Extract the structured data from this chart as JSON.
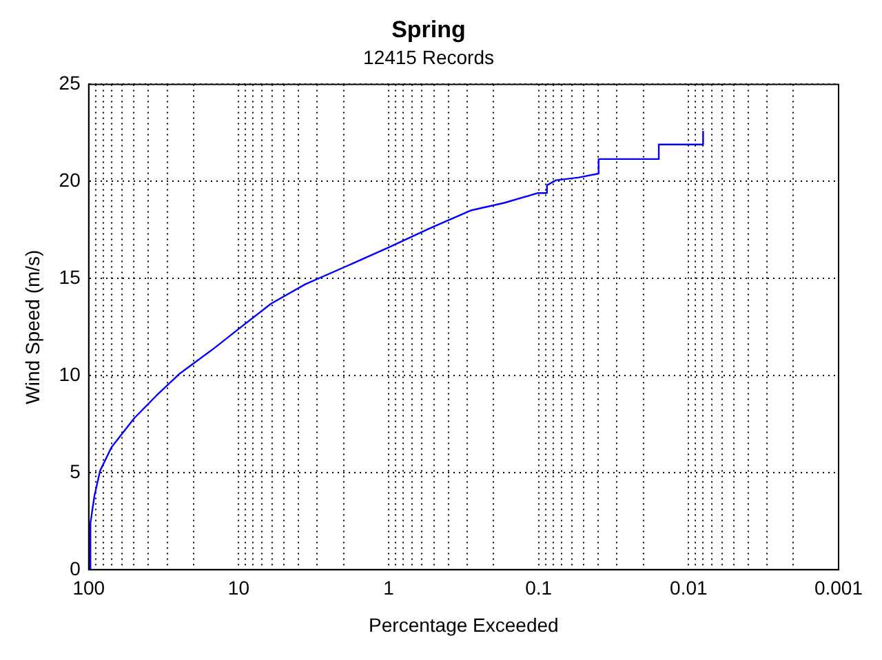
{
  "chart_data": {
    "type": "line",
    "title": "Spring",
    "subtitle": "12415 Records",
    "xlabel": "Percentage Exceeded",
    "ylabel": "Wind Speed (m/s)",
    "log": "x",
    "grid": true,
    "marker": "none",
    "line_style": "solid",
    "xlim": [
      100,
      0.001
    ],
    "ylim": [
      0,
      25
    ],
    "xticks": [
      100,
      {
        "value": 90,
        "label": null
      },
      {
        "value": 80,
        "label": null
      },
      {
        "value": 70,
        "label": null
      },
      {
        "value": 60,
        "label": null
      },
      {
        "value": 50,
        "label": null
      },
      {
        "value": 40,
        "label": null
      },
      {
        "value": 30,
        "label": null
      },
      {
        "value": 20,
        "label": null
      },
      10,
      {
        "value": 9,
        "label": null
      },
      {
        "value": 8,
        "label": null
      },
      {
        "value": 7,
        "label": null
      },
      {
        "value": 6,
        "label": null
      },
      {
        "value": 5,
        "label": null
      },
      {
        "value": 4,
        "label": null
      },
      {
        "value": 3,
        "label": null
      },
      {
        "value": 2,
        "label": null
      },
      1,
      {
        "value": 0.9,
        "label": null
      },
      {
        "value": 0.8,
        "label": null
      },
      {
        "value": 0.7,
        "label": null
      },
      {
        "value": 0.6,
        "label": null
      },
      {
        "value": 0.5,
        "label": null
      },
      {
        "value": 0.4,
        "label": null
      },
      {
        "value": 0.3,
        "label": null
      },
      {
        "value": 0.2,
        "label": null
      },
      0.1,
      {
        "value": 0.09,
        "label": null
      },
      {
        "value": 0.08,
        "label": null
      },
      {
        "value": 0.07,
        "label": null
      },
      {
        "value": 0.06,
        "label": null
      },
      {
        "value": 0.05,
        "label": null
      },
      {
        "value": 0.04,
        "label": null
      },
      {
        "value": 0.03,
        "label": null
      },
      {
        "value": 0.02,
        "label": null
      },
      0.01,
      {
        "value": 0.009,
        "label": null
      },
      {
        "value": 0.008,
        "label": null
      },
      {
        "value": 0.007,
        "label": null
      },
      {
        "value": 0.006,
        "label": null
      },
      {
        "value": 0.005,
        "label": null
      },
      {
        "value": 0.004,
        "label": null
      },
      {
        "value": 0.003,
        "label": null
      },
      {
        "value": 0.002,
        "label": null
      },
      0.001
    ],
    "yticks": [
      0,
      5,
      10,
      15,
      20,
      25
    ],
    "series": [
      {
        "color": "#0000ff",
        "x": [
          98.3,
          97.4,
          91.6,
          83.9,
          70.5,
          49.7,
          35,
          24.7,
          14.6,
          10,
          6.08,
          3.6,
          1.95,
          1,
          0.525,
          0.284,
          0.168,
          0.101,
          0.088,
          0.088,
          0.0766,
          0.054,
          0.0398,
          0.0398,
          0.0158,
          0.0158,
          0.008,
          0.008
        ],
        "values": [
          0,
          2.4,
          3.8,
          5.1,
          6.3,
          7.8,
          9.0,
          10.1,
          11.4,
          12.4,
          13.7,
          14.7,
          15.6,
          16.6,
          17.6,
          18.5,
          18.9,
          19.4,
          19.4,
          19.8,
          20.06,
          20.2,
          20.4,
          21.15,
          21.15,
          21.9,
          21.9,
          22.6
        ]
      }
    ]
  }
}
